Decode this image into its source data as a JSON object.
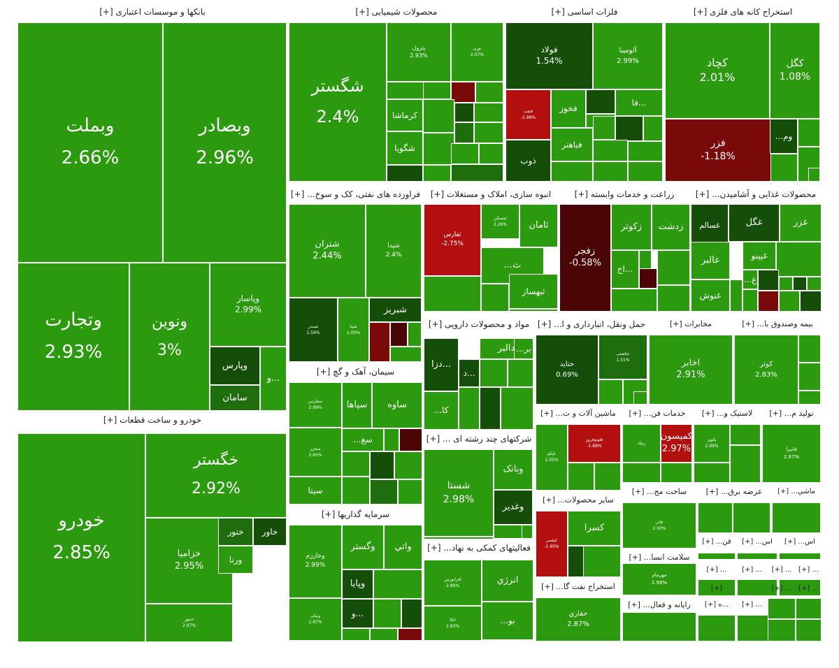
{
  "chart_data": {
    "type": "treemap",
    "colors": {
      "strong_green": "#2b9a0e",
      "bright_green": "#37b512",
      "green": "#3cc014",
      "dark_green": "#1f6e0d",
      "darker_green": "#154e08",
      "red": "#b30f0f",
      "dark_red": "#7a0a0a",
      "maroon": "#4b0505"
    },
    "sectors": [
      {
        "name": "بانکها و موسسات اعتباری [+]",
        "tiles": [
          {
            "name": "وبملت",
            "pct": "2.66%",
            "value": 2.66
          },
          {
            "name": "وبصادر",
            "pct": "2.96%",
            "value": 2.96
          },
          {
            "name": "وتجارت",
            "pct": "2.93%",
            "value": 2.93
          },
          {
            "name": "ونوین",
            "pct": "3%",
            "value": 3
          },
          {
            "name": "وپاسار",
            "pct": "2.99%",
            "value": 2.99
          },
          {
            "name": "وپارس",
            "pct": "",
            "value": null
          },
          {
            "name": "سامان",
            "pct": "",
            "value": null
          },
          {
            "name": "و...",
            "pct": "",
            "value": null
          }
        ]
      },
      {
        "name": "خودرو و ساخت قطعات [+]",
        "tiles": [
          {
            "name": "خودرو",
            "pct": "2.85%",
            "value": 2.85
          },
          {
            "name": "خگستر",
            "pct": "2.92%",
            "value": 2.92
          },
          {
            "name": "خزامیا",
            "pct": "2.95%",
            "value": 2.95
          },
          {
            "name": "خنور",
            "pct": "",
            "value": null
          },
          {
            "name": "خاور",
            "pct": "",
            "value": null
          },
          {
            "name": "ورنا",
            "pct": "",
            "value": null
          },
          {
            "name": "خمهر",
            "pct": "2.97%",
            "value": 2.97
          }
        ]
      },
      {
        "name": "محصولات شیمیایی [+]",
        "tiles": [
          {
            "name": "شگستر",
            "pct": "2.4%",
            "value": 2.4
          },
          {
            "name": "پترول",
            "pct": "2.93%",
            "value": 2.93
          },
          {
            "name": "نوری",
            "pct": "2.07%",
            "value": 2.07
          },
          {
            "name": "کرماشا",
            "pct": "",
            "value": null
          },
          {
            "name": "شگویا",
            "pct": "",
            "value": null
          }
        ]
      },
      {
        "name": "فلزات اساسی [+]",
        "tiles": [
          {
            "name": "فولاد",
            "pct": "1.54%",
            "value": 1.54
          },
          {
            "name": "آلومینا",
            "pct": "2.99%",
            "value": 2.99
          },
          {
            "name": "فنفت",
            "pct": "-2.98%",
            "value": -2.98
          },
          {
            "name": "فخوز",
            "pct": "",
            "value": null
          },
          {
            "name": "فا...",
            "pct": "",
            "value": null
          },
          {
            "name": "فباهنر",
            "pct": "",
            "value": null
          },
          {
            "name": "ذوب",
            "pct": "",
            "value": null
          }
        ]
      },
      {
        "name": "استخراج کانه های فلزی [+]",
        "tiles": [
          {
            "name": "کچاد",
            "pct": "2.01%",
            "value": 2.01
          },
          {
            "name": "کگل",
            "pct": "1.08%",
            "value": 1.08
          },
          {
            "name": "فزر",
            "pct": "-1.18%",
            "value": -1.18
          },
          {
            "name": "...وم",
            "pct": "",
            "value": null
          }
        ]
      },
      {
        "name": "فراورده های نفتی، کک و سوخ... [+]",
        "tiles": [
          {
            "name": "شتران",
            "pct": "2.44%",
            "value": 2.44
          },
          {
            "name": "شپدا",
            "pct": "2.4%",
            "value": 2.4
          },
          {
            "name": "شبندر",
            "pct": "1.59%",
            "value": 1.59
          },
          {
            "name": "شپنا",
            "pct": "2.05%",
            "value": 2.05
          },
          {
            "name": "شبریز",
            "pct": "",
            "value": null
          }
        ]
      },
      {
        "name": "انبوه سازی، املاک و مستغلات [+]",
        "tiles": [
          {
            "name": "ثفارس",
            "pct": "-2.75%",
            "value": -2.75
          },
          {
            "name": "ثمسکن",
            "pct": "2.26%",
            "value": 2.26
          },
          {
            "name": "ثامان",
            "pct": "",
            "value": null
          },
          {
            "name": "...ث",
            "pct": "",
            "value": null
          },
          {
            "name": "ثبهساز",
            "pct": "",
            "value": null
          }
        ]
      },
      {
        "name": "زراعت و خدمات وابسته [+]",
        "tiles": [
          {
            "name": "زفجر",
            "pct": "-0.58%",
            "value": -0.58
          },
          {
            "name": "زکوثر",
            "pct": "",
            "value": null
          },
          {
            "name": "زدشت",
            "pct": "",
            "value": null
          },
          {
            "name": "اخ...",
            "pct": "",
            "value": null
          }
        ]
      },
      {
        "name": "محصولات غذایی و آشامیدن... [+]",
        "tiles": [
          {
            "name": "غسالم",
            "pct": "",
            "value": null
          },
          {
            "name": "غگل",
            "pct": "",
            "value": null
          },
          {
            "name": "غزر",
            "pct": "",
            "value": null
          },
          {
            "name": "غالبر",
            "pct": "",
            "value": null
          },
          {
            "name": "غپینو",
            "pct": "",
            "value": null
          },
          {
            "name": "غنوش",
            "pct": "",
            "value": null
          },
          {
            "name": "...غ",
            "pct": "",
            "value": null
          }
        ]
      },
      {
        "name": "سیمان، آهک و گچ [+]",
        "tiles": [
          {
            "name": "سفارس",
            "pct": "2.99%",
            "value": 2.99
          },
          {
            "name": "ساوه",
            "pct": "",
            "value": null
          },
          {
            "name": "سپاها",
            "pct": "",
            "value": null
          },
          {
            "name": "سخزر",
            "pct": "2.65%",
            "value": 2.65
          },
          {
            "name": "...سغ",
            "pct": "",
            "value": null
          },
          {
            "name": "سیتا",
            "pct": "",
            "value": null
          }
        ]
      },
      {
        "name": "سرمایه گذاریها [+]",
        "tiles": [
          {
            "name": "وخارزم",
            "pct": "2.99%",
            "value": 2.99
          },
          {
            "name": "وگستر",
            "pct": "",
            "value": null
          },
          {
            "name": "واتي",
            "pct": "",
            "value": null
          },
          {
            "name": "وپایا",
            "pct": "",
            "value": null
          },
          {
            "name": "و...",
            "pct": "",
            "value": null
          },
          {
            "name": "ونیکی",
            "pct": "2.97%",
            "value": 2.97
          }
        ]
      },
      {
        "name": "مواد و محصولات دارویی [+]",
        "tiles": [
          {
            "name": "دالبر",
            "pct": "",
            "value": null
          },
          {
            "name": "...بر",
            "pct": "",
            "value": null
          },
          {
            "name": "دزا...",
            "pct": "",
            "value": null
          },
          {
            "name": "د...",
            "pct": "",
            "value": null
          },
          {
            "name": "...کا",
            "pct": "",
            "value": null
          }
        ]
      },
      {
        "name": "شرکتهای چند رشته ای ... [+]",
        "tiles": [
          {
            "name": "شستا",
            "pct": "2.98%",
            "value": 2.98
          },
          {
            "name": "وبانک",
            "pct": "",
            "value": null
          },
          {
            "name": "وغدیر",
            "pct": "",
            "value": null
          }
        ]
      },
      {
        "name": "فعالیتهای کمکی به نهاد... [+]",
        "tiles": [
          {
            "name": "افرانورس",
            "pct": "2.89%",
            "value": 2.89
          },
          {
            "name": "انرژي",
            "pct": "",
            "value": null
          },
          {
            "name": "...بو",
            "pct": "",
            "value": null
          },
          {
            "name": "اتکا",
            "pct": "2.93%",
            "value": 2.93
          }
        ]
      },
      {
        "name": "حمل ونقل، انبارداری و ا... [+]",
        "tiles": [
          {
            "name": "حتاید",
            "pct": "0.69%",
            "value": 0.69
          },
          {
            "name": "حکشتی",
            "pct": "1.51%",
            "value": 1.51
          }
        ]
      },
      {
        "name": "مخابرات [+]",
        "tiles": [
          {
            "name": "اخابر",
            "pct": "2.91%",
            "value": 2.91
          }
        ]
      },
      {
        "name": "بیمه وصندوق با... [+]",
        "tiles": [
          {
            "name": "کوثر",
            "pct": "2.83%",
            "value": 2.83
          }
        ]
      },
      {
        "name": "ماشین آلات و ت... [+]",
        "tiles": [
          {
            "name": "تاپکو",
            "pct": "2.05%",
            "value": 2.05
          },
          {
            "name": "فلوتوفروز",
            "pct": "-1.88%",
            "value": -1.88
          }
        ]
      },
      {
        "name": "خدمات فن... [+]",
        "tiles": [
          {
            "name": "رنیک",
            "pct": "",
            "value": null
          },
          {
            "name": "کمیسون",
            "pct": "2.97%",
            "value": 2.97
          }
        ]
      },
      {
        "name": "لاستیک و... [+]",
        "tiles": [
          {
            "name": "پکویر",
            "pct": "2.99%",
            "value": 2.99
          }
        ]
      },
      {
        "name": "تولید م... [+]",
        "tiles": [
          {
            "name": "فابیرا",
            "pct": "2.97%",
            "value": 2.97
          }
        ]
      },
      {
        "name": "سایر محصولات... [+]",
        "tiles": [
          {
            "name": "کسرا",
            "pct": "",
            "value": null
          },
          {
            "name": "کیقصر",
            "pct": "-2.95%",
            "value": -2.95
          }
        ]
      },
      {
        "name": "استخراج نفت گا... [+]",
        "tiles": [
          {
            "name": "حفاري",
            "pct": "2.87%",
            "value": 2.87
          }
        ]
      },
      {
        "name": "ساخت مح... [+]",
        "tiles": [
          {
            "name": "فاذر",
            "pct": "2.93%",
            "value": 2.93
          }
        ]
      },
      {
        "name": "عرضه برق... [+]",
        "tiles": []
      },
      {
        "name": "ماشي... [+]",
        "tiles": []
      },
      {
        "name": "سلامت انسا... [+]",
        "tiles": [
          {
            "name": "مهرمام",
            "pct": "2.98%",
            "value": 2.98
          }
        ]
      },
      {
        "name": "قن... [+]",
        "tiles": []
      },
      {
        "name": "اس... [+]",
        "tiles": []
      },
      {
        "name": "اس... [+]",
        "tiles": []
      },
      {
        "name": "رایانه و فعال... [+]",
        "tiles": []
      },
      {
        "name": "...ه [+]",
        "tiles": []
      }
    ]
  }
}
